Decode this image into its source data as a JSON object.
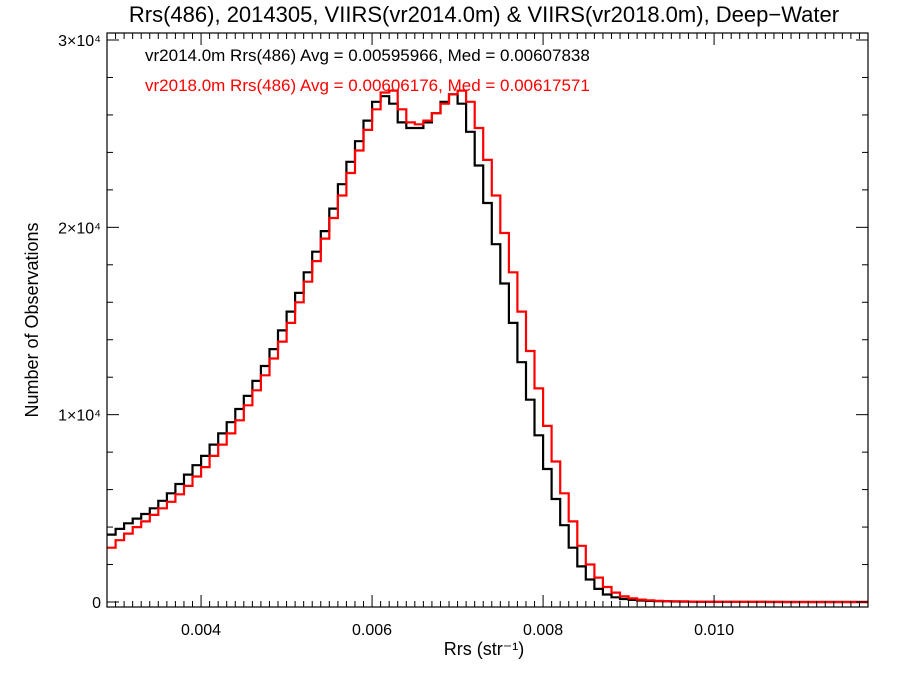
{
  "chart_data": {
    "type": "line",
    "title": "Rrs(486), 2014305, VIIRS(vr2014.0m) & VIIRS(vr2018.0m), Deep−Water",
    "xlabel": "Rrs (str⁻¹)",
    "ylabel": "Number of Observations",
    "xlim": [
      0.0029,
      0.0118
    ],
    "ylim": [
      0,
      30000
    ],
    "x_ticks": [
      0.004,
      0.006,
      0.008,
      0.01
    ],
    "x_tick_labels": [
      "0.004",
      "0.006",
      "0.008",
      "0.010"
    ],
    "y_ticks": [
      0,
      10000,
      20000,
      30000
    ],
    "y_tick_labels": [
      "0",
      "1×10⁴",
      "2×10⁴",
      "3×10⁴"
    ],
    "grid": false,
    "legend_position": "top-left",
    "annotations": [
      "vr2014.0m Rrs(486) Avg = 0.00595966, Med = 0.00607838",
      "vr2018.0m Rrs(486) Avg = 0.00606176, Med = 0.00617571"
    ],
    "series": [
      {
        "color": "#000000",
        "step": true,
        "x": [
          0.0029,
          0.003,
          0.0031,
          0.0032,
          0.0033,
          0.0034,
          0.0035,
          0.0036,
          0.0037,
          0.0038,
          0.0039,
          0.004,
          0.0041,
          0.0042,
          0.0043,
          0.0044,
          0.0045,
          0.0046,
          0.0047,
          0.0048,
          0.0049,
          0.005,
          0.0051,
          0.0052,
          0.0053,
          0.0054,
          0.0055,
          0.0056,
          0.0057,
          0.0058,
          0.0059,
          0.006,
          0.0061,
          0.0062,
          0.0063,
          0.0064,
          0.0065,
          0.0066,
          0.0067,
          0.0068,
          0.0069,
          0.007,
          0.0071,
          0.0072,
          0.0073,
          0.0074,
          0.0075,
          0.0076,
          0.0077,
          0.0078,
          0.0079,
          0.008,
          0.0081,
          0.0082,
          0.0083,
          0.0084,
          0.0085,
          0.0086,
          0.0087,
          0.0088,
          0.0089,
          0.009,
          0.0091,
          0.0092,
          0.0093,
          0.0094,
          0.0095,
          0.0096,
          0.0097,
          0.0098,
          0.01,
          0.0102,
          0.0104,
          0.0106,
          0.0108,
          0.011,
          0.0112,
          0.0114,
          0.0116,
          0.0118
        ],
        "y": [
          3600,
          3900,
          4200,
          4450,
          4700,
          5000,
          5400,
          5800,
          6300,
          6800,
          7300,
          7800,
          8400,
          9000,
          9600,
          10300,
          11000,
          11800,
          12600,
          13500,
          14500,
          15500,
          16500,
          17600,
          18700,
          19800,
          21000,
          22300,
          23500,
          24600,
          25700,
          26700,
          27000,
          26600,
          25600,
          25300,
          25300,
          25600,
          26100,
          26700,
          27100,
          26600,
          25100,
          23300,
          21300,
          19100,
          17000,
          14900,
          12800,
          10800,
          8900,
          7100,
          5500,
          4100,
          2900,
          1900,
          1200,
          700,
          400,
          250,
          160,
          110,
          80,
          60,
          45,
          35,
          25,
          20,
          15,
          10,
          8,
          5,
          3,
          2,
          2,
          1,
          1,
          1,
          1,
          1
        ]
      },
      {
        "color": "#ff0000",
        "step": true,
        "x": [
          0.0029,
          0.003,
          0.0031,
          0.0032,
          0.0033,
          0.0034,
          0.0035,
          0.0036,
          0.0037,
          0.0038,
          0.0039,
          0.004,
          0.0041,
          0.0042,
          0.0043,
          0.0044,
          0.0045,
          0.0046,
          0.0047,
          0.0048,
          0.0049,
          0.005,
          0.0051,
          0.0052,
          0.0053,
          0.0054,
          0.0055,
          0.0056,
          0.0057,
          0.0058,
          0.0059,
          0.006,
          0.0061,
          0.0062,
          0.0063,
          0.0064,
          0.0065,
          0.0066,
          0.0067,
          0.0068,
          0.0069,
          0.007,
          0.0071,
          0.0072,
          0.0073,
          0.0074,
          0.0075,
          0.0076,
          0.0077,
          0.0078,
          0.0079,
          0.008,
          0.0081,
          0.0082,
          0.0083,
          0.0084,
          0.0085,
          0.0086,
          0.0087,
          0.0088,
          0.0089,
          0.009,
          0.0091,
          0.0092,
          0.0093,
          0.0094,
          0.0095,
          0.0096,
          0.0097,
          0.0098,
          0.01,
          0.0102,
          0.0104,
          0.0106,
          0.0108,
          0.011,
          0.0112,
          0.0114,
          0.0116,
          0.0118
        ],
        "y": [
          2900,
          3300,
          3650,
          4000,
          4300,
          4650,
          5000,
          5350,
          5750,
          6200,
          6700,
          7200,
          7800,
          8400,
          9000,
          9700,
          10500,
          11300,
          12100,
          13000,
          13900,
          14900,
          16000,
          17100,
          18200,
          19400,
          20500,
          21700,
          22900,
          24100,
          25200,
          26300,
          27200,
          27300,
          26300,
          25600,
          25500,
          25700,
          26100,
          26600,
          27100,
          27300,
          26700,
          25300,
          23600,
          21700,
          19700,
          17600,
          15500,
          13400,
          11400,
          9400,
          7500,
          5800,
          4300,
          3000,
          2000,
          1300,
          800,
          500,
          300,
          190,
          130,
          90,
          65,
          50,
          40,
          30,
          22,
          16,
          10,
          6,
          4,
          3,
          2,
          2,
          1,
          1,
          1,
          1
        ]
      }
    ]
  }
}
